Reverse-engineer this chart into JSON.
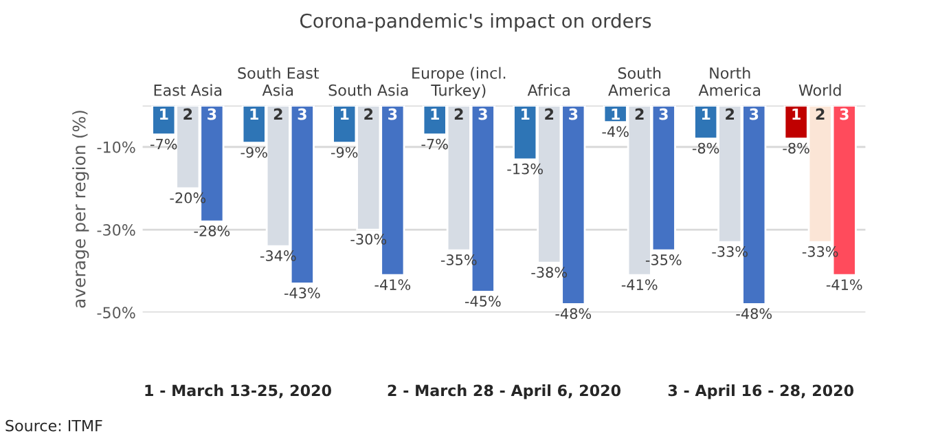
{
  "chart_data": {
    "type": "bar",
    "title": "Corona-pandemic's impact on orders",
    "ylabel": "average per region (%)",
    "categories": [
      "East Asia",
      "South East\nAsia",
      "South Asia",
      "Europe (incl.\nTurkey)",
      "Africa",
      "South\nAmerica",
      "North\nAmerica",
      "World"
    ],
    "series": [
      {
        "name": "1",
        "colors": [
          "#2e75b6",
          "#2e75b6",
          "#2e75b6",
          "#2e75b6",
          "#2e75b6",
          "#2e75b6",
          "#2e75b6",
          "#c00000"
        ],
        "values": [
          -7,
          -9,
          -9,
          -7,
          -13,
          -4,
          -8,
          -8
        ]
      },
      {
        "name": "2",
        "colors": [
          "#d6dce4",
          "#d6dce4",
          "#d6dce4",
          "#d6dce4",
          "#d6dce4",
          "#d6dce4",
          "#d6dce4",
          "#fbe5d6"
        ],
        "values": [
          -20,
          -34,
          -30,
          -35,
          -38,
          -41,
          -33,
          -33
        ]
      },
      {
        "name": "3",
        "colors": [
          "#4472c4",
          "#4472c4",
          "#4472c4",
          "#4472c4",
          "#4472c4",
          "#4472c4",
          "#4472c4",
          "#ff4b5c"
        ],
        "values": [
          -28,
          -43,
          -41,
          -45,
          -48,
          -35,
          -48,
          -41
        ]
      }
    ],
    "value_labels": [
      [
        "-7%",
        "-9%",
        "-9%",
        "-7%",
        "-13%",
        "-4%",
        "-8%",
        "-8%"
      ],
      [
        "-20%",
        "-34%",
        "-30%",
        "-35%",
        "-38%",
        "-41%",
        "-33%",
        "-33%"
      ],
      [
        "-28%",
        "-43%",
        "-41%",
        "-45%",
        "-48%",
        "-35%",
        "-48%",
        "-41%"
      ]
    ],
    "ylim": [
      -50,
      0
    ],
    "yticks": [
      {
        "value": 0,
        "label": null
      },
      {
        "value": -10,
        "label": "-10%"
      },
      {
        "value": -30,
        "label": "-30%"
      },
      {
        "value": -50,
        "label": "-50%"
      }
    ],
    "grid": "y",
    "annotations": [
      "1 - March 13-25, 2020",
      "2 - March 28 - April 6, 2020",
      "3 - April 16 - 28, 2020",
      "Source: ITMF"
    ]
  }
}
